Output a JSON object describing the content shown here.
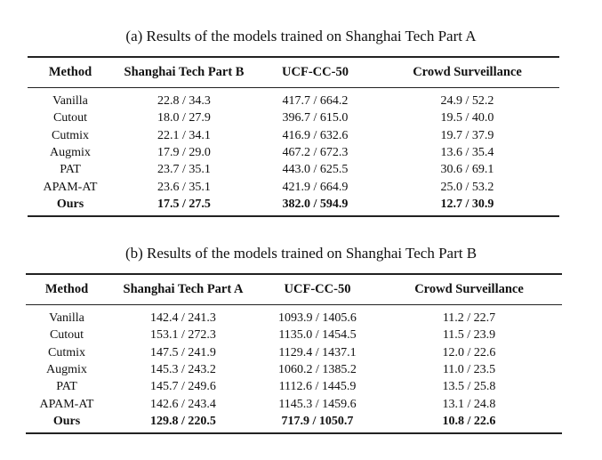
{
  "table_a": {
    "caption": "(a) Results of the models trained on Shanghai Tech Part A",
    "headers": [
      "Method",
      "Shanghai Tech Part B",
      "UCF-CC-50",
      "Crowd Surveillance"
    ],
    "rows": [
      [
        "Vanilla",
        "22.8 / 34.3",
        "417.7 / 664.2",
        "24.9 / 52.2"
      ],
      [
        "Cutout",
        "18.0 / 27.9",
        "396.7 / 615.0",
        "19.5 / 40.0"
      ],
      [
        "Cutmix",
        "22.1 / 34.1",
        "416.9 / 632.6",
        "19.7 / 37.9"
      ],
      [
        "Augmix",
        "17.9 / 29.0",
        "467.2 / 672.3",
        "13.6 / 35.4"
      ],
      [
        "PAT",
        "23.7 / 35.1",
        "443.0 / 625.5",
        "30.6 / 69.1"
      ],
      [
        "APAM-AT",
        "23.6 / 35.1",
        "421.9 / 664.9",
        "25.0 / 53.2"
      ],
      [
        "Ours",
        "17.5 / 27.5",
        "382.0 / 594.9",
        "12.7 / 30.9"
      ]
    ]
  },
  "table_b": {
    "caption": "(b) Results of the models trained on Shanghai Tech Part B",
    "headers": [
      "Method",
      "Shanghai Tech Part A",
      "UCF-CC-50",
      "Crowd Surveillance"
    ],
    "rows": [
      [
        "Vanilla",
        "142.4 / 241.3",
        "1093.9 / 1405.6",
        "11.2 / 22.7"
      ],
      [
        "Cutout",
        "153.1 / 272.3",
        "1135.0 / 1454.5",
        "11.5 / 23.9"
      ],
      [
        "Cutmix",
        "147.5 / 241.9",
        "1129.4 / 1437.1",
        "12.0 / 22.6"
      ],
      [
        "Augmix",
        "145.3 / 243.2",
        "1060.2 / 1385.2",
        "11.0 / 23.5"
      ],
      [
        "PAT",
        "145.7 / 249.6",
        "1112.6 / 1445.9",
        "13.5 / 25.8"
      ],
      [
        "APAM-AT",
        "142.6 / 243.4",
        "1145.3 / 1459.6",
        "13.1 / 24.8"
      ],
      [
        "Ours",
        "129.8 / 220.5",
        "717.9 / 1050.7",
        "10.8 / 22.6"
      ]
    ]
  }
}
